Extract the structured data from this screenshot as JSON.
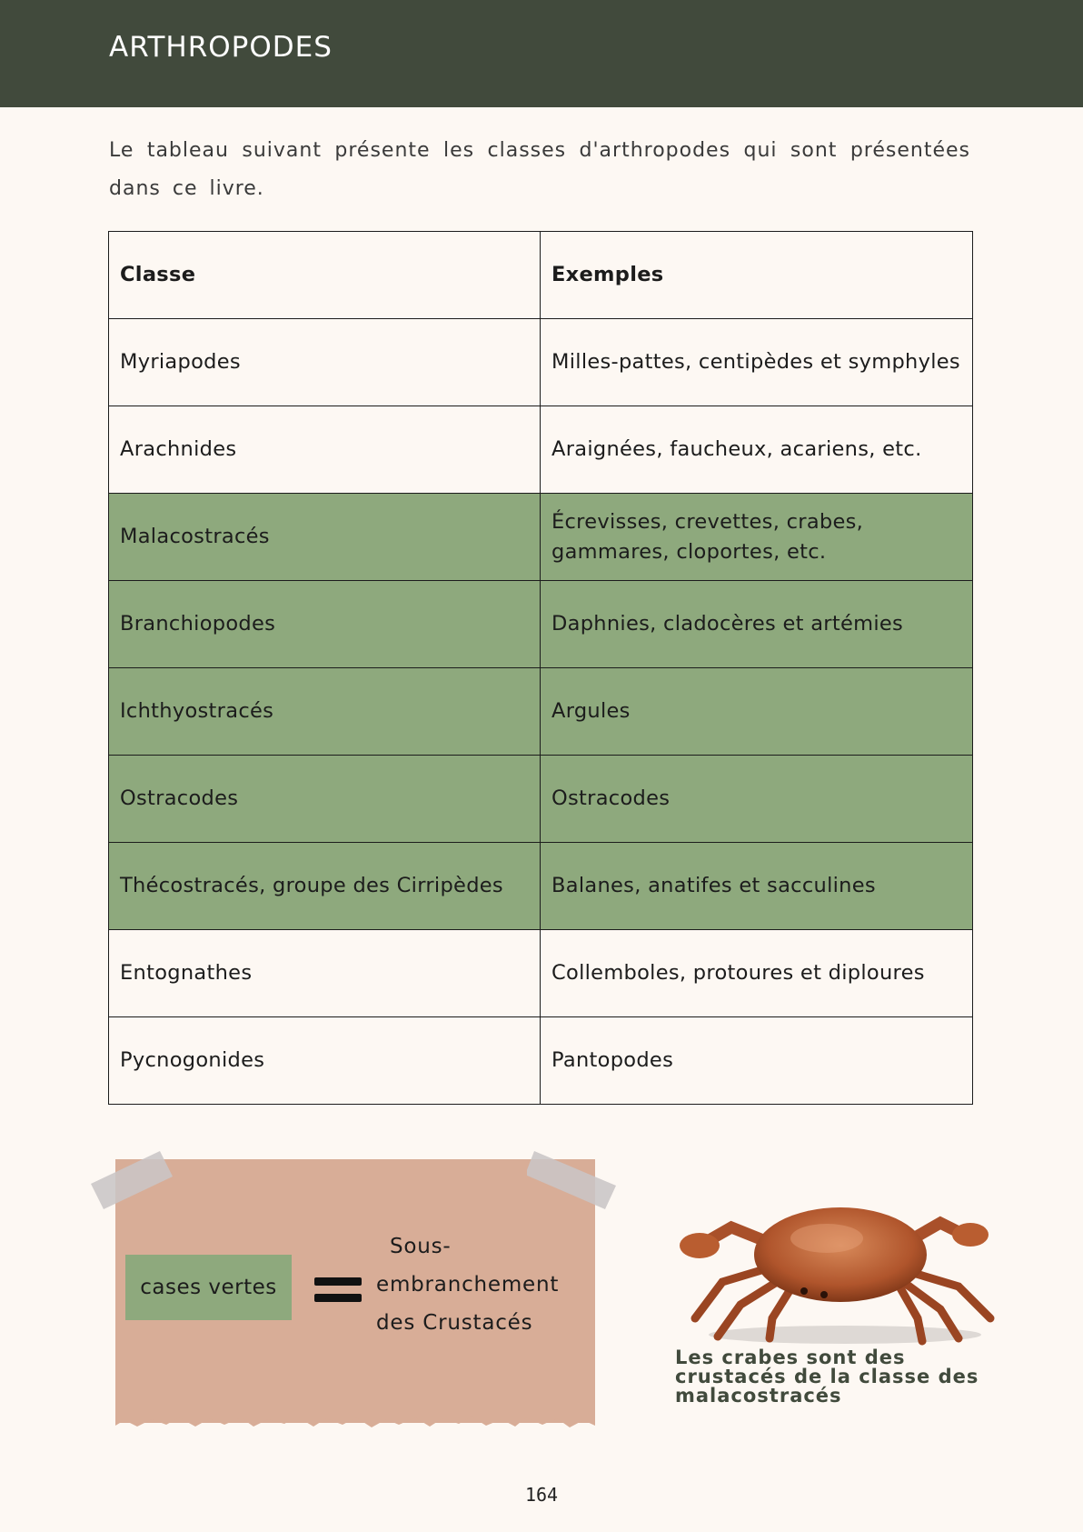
{
  "header": {
    "title": "ARTHROPODES"
  },
  "intro": "Le tableau suivant présente les classes d'arthropodes qui sont présentées dans ce livre.",
  "table": {
    "headers": [
      "Classe",
      "Exemples"
    ],
    "rows": [
      {
        "classe": "Myriapodes",
        "exemples": "Milles-pattes, centipèdes et symphyles",
        "highlight": false
      },
      {
        "classe": "Arachnides",
        "exemples": "Araignées, faucheux, acariens, etc.",
        "highlight": false
      },
      {
        "classe": "Malacostracés",
        "exemples": "Écrevisses, crevettes, crabes, gammares, cloportes, etc.",
        "highlight": true
      },
      {
        "classe": "Branchiopodes",
        "exemples": "Daphnies, cladocères et artémies",
        "highlight": true
      },
      {
        "classe": "Ichthyostracés",
        "exemples": "Argules",
        "highlight": true
      },
      {
        "classe": "Ostracodes",
        "exemples": "Ostracodes",
        "highlight": true
      },
      {
        "classe": "Thécostracés, groupe des Cirripèdes",
        "exemples": "Balanes, anatifes et sacculines",
        "highlight": true
      },
      {
        "classe": "Entognathes",
        "exemples": "Collemboles, protoures et diploures",
        "highlight": false
      },
      {
        "classe": "Pycnogonides",
        "exemples": "Pantopodes",
        "highlight": false
      }
    ]
  },
  "legend": {
    "swatch_label": "cases vertes",
    "definition": [
      "Sous-",
      "embranchement",
      "des Crustacés"
    ]
  },
  "photo": {
    "icon": "crab-icon",
    "caption": "Les crabes sont des crustacés de la classe des malacostracés"
  },
  "footer": {
    "page_number": "164"
  },
  "colors": {
    "header_bg": "#414a3c",
    "page_bg": "#fdf8f3",
    "highlight_green": "#8ea97d",
    "note_bg": "#d8ad97"
  }
}
